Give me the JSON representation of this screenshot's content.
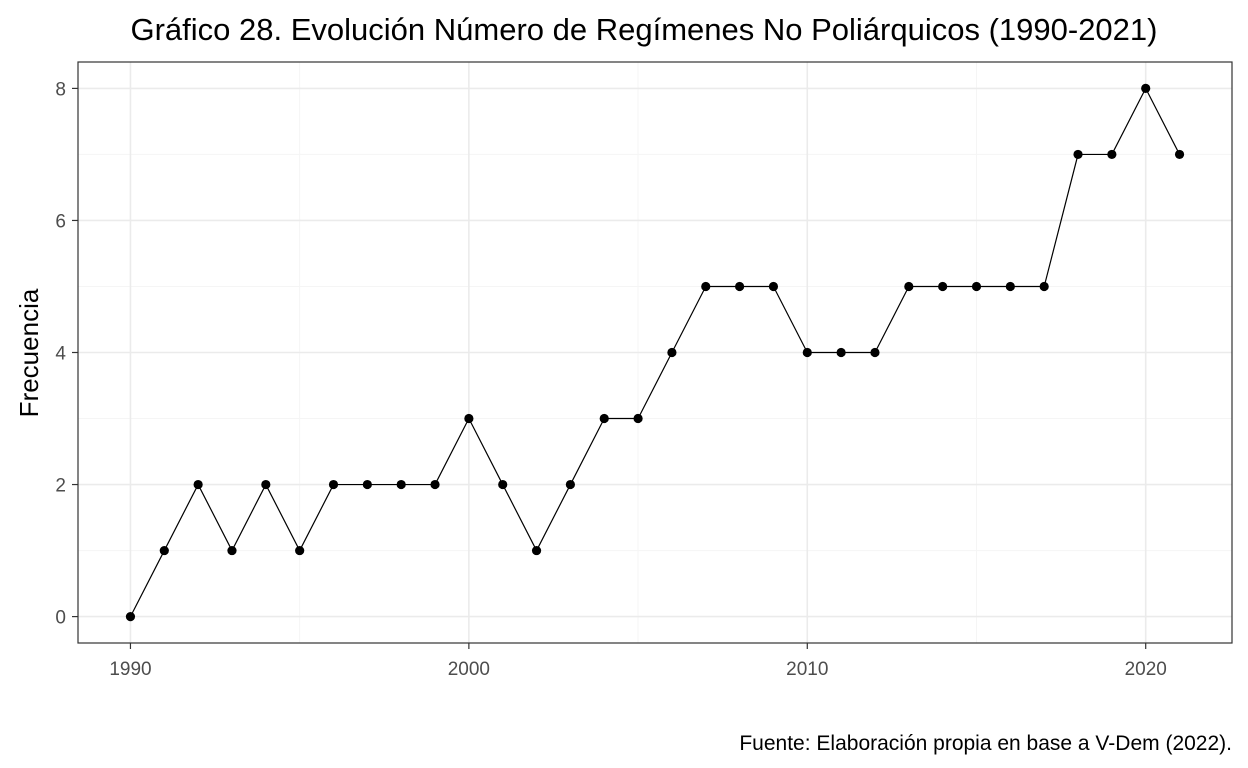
{
  "chart_data": {
    "type": "line",
    "title": "Gráfico 28. Evolución Número de Regímenes No Poliárquicos (1990-2021)",
    "xlabel": "",
    "ylabel": "Frecuencia",
    "caption": "Fuente: Elaboración propia en base a V-Dem (2022).",
    "x": [
      1990,
      1991,
      1992,
      1993,
      1994,
      1995,
      1996,
      1997,
      1998,
      1999,
      2000,
      2001,
      2002,
      2003,
      2004,
      2005,
      2006,
      2007,
      2008,
      2009,
      2010,
      2011,
      2012,
      2013,
      2014,
      2015,
      2016,
      2017,
      2018,
      2019,
      2020,
      2021
    ],
    "y": [
      0,
      1,
      2,
      1,
      2,
      1,
      2,
      2,
      2,
      2,
      3,
      2,
      1,
      2,
      3,
      3,
      4,
      5,
      5,
      5,
      4,
      4,
      4,
      5,
      5,
      5,
      5,
      5,
      7,
      7,
      8,
      7
    ],
    "xlim": [
      1988.45,
      2022.55
    ],
    "ylim": [
      -0.4,
      8.4
    ],
    "xticks": [
      1990,
      2000,
      2010,
      2020
    ],
    "xticks_minor": [
      1995,
      2005,
      2015
    ],
    "yticks": [
      0,
      2,
      4,
      6,
      8
    ],
    "yticks_minor": [
      1,
      3,
      5,
      7
    ],
    "grid": true,
    "legend": "none",
    "colors": {
      "line": "#000000",
      "point": "#000000",
      "grid_major": "#ebebeb",
      "grid_minor": "#f5f5f5",
      "panel_border": "#333333",
      "tick": "#333333"
    }
  }
}
